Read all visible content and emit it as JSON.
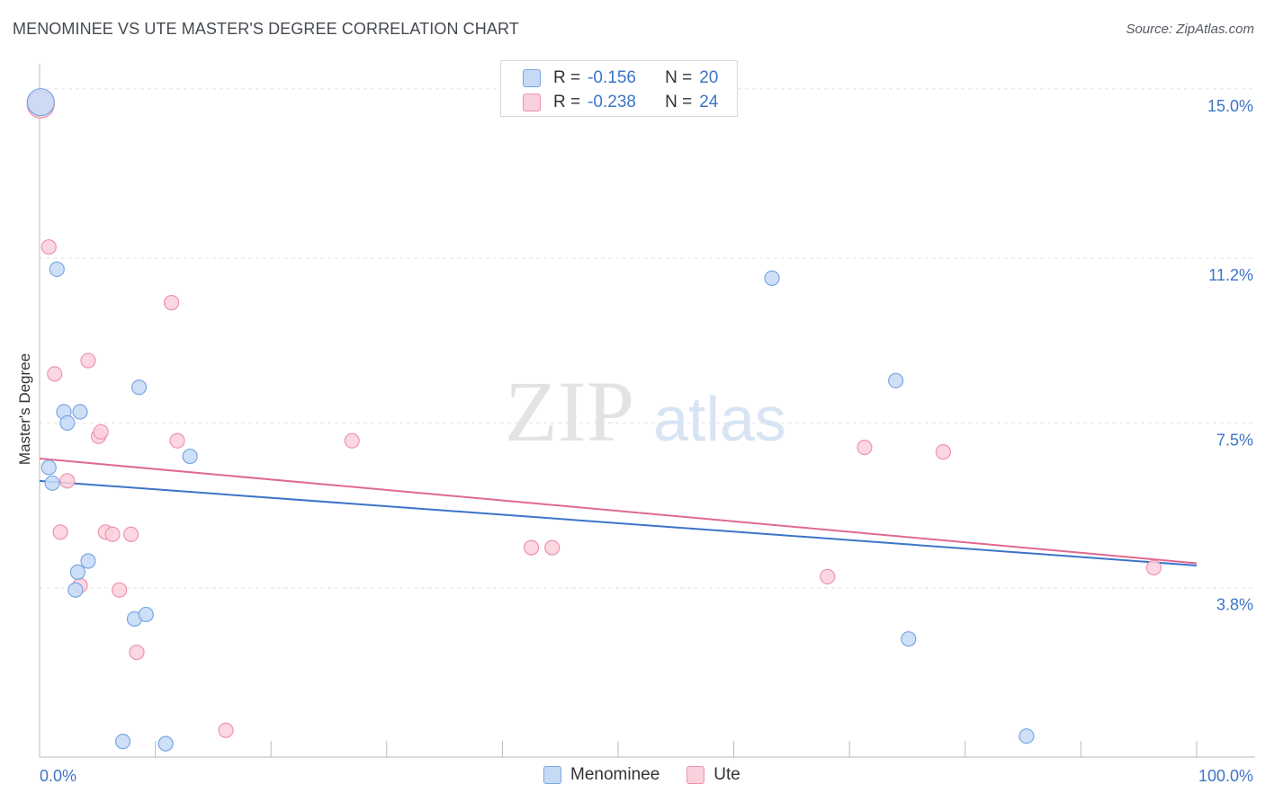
{
  "title": "MENOMINEE VS UTE MASTER'S DEGREE CORRELATION CHART",
  "source": "Source: ZipAtlas.com",
  "watermark": {
    "zip": "ZIP",
    "atlas": "atlas"
  },
  "legend": {
    "rows": [
      {
        "r_label": "R =",
        "r_value": "-0.156",
        "n_label": "N =",
        "n_value": "20"
      },
      {
        "r_label": "R =",
        "r_value": "-0.238",
        "n_label": "N =",
        "n_value": "24"
      }
    ]
  },
  "colors": {
    "menominee_fill": "#c6daf6",
    "menominee_stroke": "#7aa6e4",
    "menominee_line": "#3d74c8",
    "ute_fill": "#fad0dc",
    "ute_stroke": "#ee93ad",
    "ute_line": "#e0698f",
    "tick_label": "#3d74c8",
    "grid": "#e2e2e2"
  },
  "chart_data": {
    "type": "scatter",
    "title": "MENOMINEE VS UTE MASTER'S DEGREE CORRELATION CHART",
    "xlabel": "",
    "ylabel": "Master's Degree",
    "xlim": [
      0,
      100
    ],
    "ylim": [
      0.0,
      15.4
    ],
    "x_tick_labels": {
      "min": "0.0%",
      "max": "100.0%"
    },
    "y_ticks": [
      {
        "value": 3.8,
        "label": "3.8%"
      },
      {
        "value": 7.5,
        "label": "7.5%"
      },
      {
        "value": 11.2,
        "label": "11.2%"
      },
      {
        "value": 15.0,
        "label": "15.0%"
      }
    ],
    "legend_position": "top-center",
    "series": [
      {
        "name": "Menominee",
        "r": -0.156,
        "n": 20,
        "trend": {
          "y_at_x0": 6.2,
          "y_at_x100": 4.3
        },
        "points": [
          {
            "x": 0.1,
            "y": 14.7,
            "big": true
          },
          {
            "x": 0.8,
            "y": 6.5
          },
          {
            "x": 1.1,
            "y": 6.15
          },
          {
            "x": 1.5,
            "y": 10.95
          },
          {
            "x": 2.1,
            "y": 7.75
          },
          {
            "x": 2.4,
            "y": 7.5
          },
          {
            "x": 3.1,
            "y": 3.75
          },
          {
            "x": 3.3,
            "y": 4.15
          },
          {
            "x": 3.5,
            "y": 7.75
          },
          {
            "x": 4.2,
            "y": 4.4
          },
          {
            "x": 7.2,
            "y": 0.35
          },
          {
            "x": 8.2,
            "y": 3.1
          },
          {
            "x": 8.6,
            "y": 8.3
          },
          {
            "x": 9.2,
            "y": 3.2
          },
          {
            "x": 10.9,
            "y": 0.3
          },
          {
            "x": 13.0,
            "y": 6.75
          },
          {
            "x": 63.3,
            "y": 10.75
          },
          {
            "x": 74.0,
            "y": 8.45
          },
          {
            "x": 75.1,
            "y": 2.65
          },
          {
            "x": 85.3,
            "y": 0.47
          }
        ]
      },
      {
        "name": "Ute",
        "r": -0.238,
        "n": 24,
        "trend": {
          "y_at_x0": 6.7,
          "y_at_x100": 4.35
        },
        "points": [
          {
            "x": 0.1,
            "y": 14.65,
            "big": true
          },
          {
            "x": 0.8,
            "y": 11.45
          },
          {
            "x": 1.3,
            "y": 8.6
          },
          {
            "x": 1.8,
            "y": 5.05
          },
          {
            "x": 2.4,
            "y": 6.2
          },
          {
            "x": 3.5,
            "y": 3.85
          },
          {
            "x": 4.2,
            "y": 8.9
          },
          {
            "x": 5.1,
            "y": 7.2
          },
          {
            "x": 5.3,
            "y": 7.3
          },
          {
            "x": 5.7,
            "y": 5.05
          },
          {
            "x": 6.3,
            "y": 5.0
          },
          {
            "x": 6.9,
            "y": 3.75
          },
          {
            "x": 7.9,
            "y": 5.0
          },
          {
            "x": 8.4,
            "y": 2.35
          },
          {
            "x": 11.4,
            "y": 10.2
          },
          {
            "x": 11.9,
            "y": 7.1
          },
          {
            "x": 16.1,
            "y": 0.6
          },
          {
            "x": 27.0,
            "y": 7.1
          },
          {
            "x": 42.5,
            "y": 4.7
          },
          {
            "x": 44.3,
            "y": 4.7
          },
          {
            "x": 68.1,
            "y": 4.05
          },
          {
            "x": 71.3,
            "y": 6.95
          },
          {
            "x": 78.1,
            "y": 6.85
          },
          {
            "x": 96.3,
            "y": 4.25
          }
        ]
      }
    ]
  }
}
